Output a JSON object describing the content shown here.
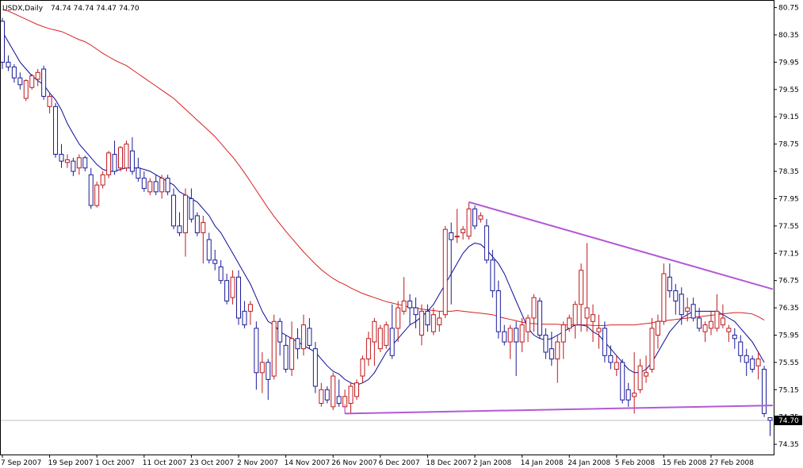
{
  "colors": {
    "background": "#ffffff",
    "frame": "#000000",
    "bull": "#c0181c",
    "bear": "#1a1a99",
    "ma_fast": "#0a0a9a",
    "ma_slow": "#d82020",
    "trendline": "#b25ad6",
    "current_line": "#c0c0c0",
    "current_label_bg": "#000000"
  },
  "chart_data": {
    "type": "candlestick",
    "symbol_label": "USDX,Daily",
    "ohlc_label": "74.74 74.74 74.47 74.70",
    "current_price": "74.70",
    "ylim": [
      74.2,
      80.85
    ],
    "y_ticks": [
      "80.75",
      "80.35",
      "79.95",
      "79.55",
      "79.15",
      "78.75",
      "78.35",
      "77.95",
      "77.55",
      "77.15",
      "76.75",
      "76.35",
      "75.95",
      "75.55",
      "75.15",
      "74.75",
      "74.35"
    ],
    "x_ticks": [
      "7 Sep 2007",
      "19 Sep 2007",
      "1 Oct 2007",
      "11 Oct 2007",
      "23 Oct 2007",
      "2 Nov 2007",
      "14 Nov 2007",
      "26 Nov 2007",
      "6 Dec 2007",
      "18 Dec 2007",
      "2 Jan 2008",
      "14 Jan 2008",
      "24 Jan 2008",
      "5 Feb 2008",
      "15 Feb 2008",
      "27 Feb 2008"
    ],
    "x_tick_bar_index": [
      0,
      8,
      16,
      24,
      32,
      40,
      48,
      56,
      64,
      72,
      80,
      88,
      96,
      104,
      112,
      120
    ],
    "candles": [
      {
        "o": 80.55,
        "h": 80.6,
        "l": 79.85,
        "c": 79.95
      },
      {
        "o": 79.95,
        "h": 80.05,
        "l": 79.82,
        "c": 79.88
      },
      {
        "o": 79.88,
        "h": 79.92,
        "l": 79.65,
        "c": 79.72
      },
      {
        "o": 79.72,
        "h": 79.8,
        "l": 79.55,
        "c": 79.62
      },
      {
        "o": 79.42,
        "h": 79.7,
        "l": 79.38,
        "c": 79.68
      },
      {
        "o": 79.58,
        "h": 79.78,
        "l": 79.55,
        "c": 79.75
      },
      {
        "o": 79.7,
        "h": 79.85,
        "l": 79.6,
        "c": 79.8
      },
      {
        "o": 79.85,
        "h": 79.9,
        "l": 79.4,
        "c": 79.45
      },
      {
        "o": 79.3,
        "h": 79.5,
        "l": 79.2,
        "c": 79.45
      },
      {
        "o": 79.3,
        "h": 79.35,
        "l": 78.55,
        "c": 78.6
      },
      {
        "o": 78.6,
        "h": 78.75,
        "l": 78.4,
        "c": 78.5
      },
      {
        "o": 78.48,
        "h": 78.6,
        "l": 78.4,
        "c": 78.52
      },
      {
        "o": 78.5,
        "h": 78.55,
        "l": 78.28,
        "c": 78.35
      },
      {
        "o": 78.4,
        "h": 78.6,
        "l": 78.3,
        "c": 78.55
      },
      {
        "o": 78.55,
        "h": 78.58,
        "l": 78.35,
        "c": 78.4
      },
      {
        "o": 78.3,
        "h": 78.4,
        "l": 77.8,
        "c": 77.85
      },
      {
        "o": 77.85,
        "h": 78.2,
        "l": 77.82,
        "c": 78.15
      },
      {
        "o": 78.15,
        "h": 78.35,
        "l": 78.1,
        "c": 78.3
      },
      {
        "o": 78.3,
        "h": 78.65,
        "l": 78.25,
        "c": 78.62
      },
      {
        "o": 78.6,
        "h": 78.8,
        "l": 78.3,
        "c": 78.35
      },
      {
        "o": 78.4,
        "h": 78.72,
        "l": 78.35,
        "c": 78.7
      },
      {
        "o": 78.4,
        "h": 78.8,
        "l": 78.35,
        "c": 78.75
      },
      {
        "o": 78.65,
        "h": 78.85,
        "l": 78.3,
        "c": 78.35
      },
      {
        "o": 78.4,
        "h": 78.55,
        "l": 78.2,
        "c": 78.25
      },
      {
        "o": 78.25,
        "h": 78.35,
        "l": 78.05,
        "c": 78.1
      },
      {
        "o": 78.05,
        "h": 78.25,
        "l": 78.0,
        "c": 78.2
      },
      {
        "o": 78.2,
        "h": 78.3,
        "l": 78.0,
        "c": 78.05
      },
      {
        "o": 78.05,
        "h": 78.3,
        "l": 77.95,
        "c": 78.25
      },
      {
        "o": 78.25,
        "h": 78.3,
        "l": 78.0,
        "c": 78.05
      },
      {
        "o": 78.0,
        "h": 78.1,
        "l": 77.5,
        "c": 77.55
      },
      {
        "o": 77.55,
        "h": 77.75,
        "l": 77.4,
        "c": 77.45
      },
      {
        "o": 77.45,
        "h": 78.1,
        "l": 77.1,
        "c": 78.0
      },
      {
        "o": 77.95,
        "h": 78.1,
        "l": 77.6,
        "c": 77.65
      },
      {
        "o": 77.7,
        "h": 77.75,
        "l": 77.4,
        "c": 77.45
      },
      {
        "o": 77.45,
        "h": 77.7,
        "l": 77.0,
        "c": 77.6
      },
      {
        "o": 77.35,
        "h": 77.45,
        "l": 77.0,
        "c": 77.05
      },
      {
        "o": 77.05,
        "h": 77.2,
        "l": 76.9,
        "c": 77.0
      },
      {
        "o": 76.95,
        "h": 77.05,
        "l": 76.7,
        "c": 76.75
      },
      {
        "o": 76.75,
        "h": 76.85,
        "l": 76.4,
        "c": 76.45
      },
      {
        "o": 76.5,
        "h": 76.9,
        "l": 76.4,
        "c": 76.8
      },
      {
        "o": 76.8,
        "h": 76.9,
        "l": 76.1,
        "c": 76.2
      },
      {
        "o": 76.3,
        "h": 76.45,
        "l": 76.05,
        "c": 76.1
      },
      {
        "o": 76.3,
        "h": 76.45,
        "l": 76.1,
        "c": 76.4
      },
      {
        "o": 76.05,
        "h": 76.15,
        "l": 75.15,
        "c": 75.4
      },
      {
        "o": 75.4,
        "h": 75.7,
        "l": 75.1,
        "c": 75.55
      },
      {
        "o": 75.55,
        "h": 75.6,
        "l": 75.0,
        "c": 75.3
      },
      {
        "o": 75.35,
        "h": 76.25,
        "l": 75.3,
        "c": 76.15
      },
      {
        "o": 76.15,
        "h": 76.2,
        "l": 75.65,
        "c": 75.85
      },
      {
        "o": 75.8,
        "h": 75.95,
        "l": 75.4,
        "c": 75.45
      },
      {
        "o": 75.45,
        "h": 76.15,
        "l": 75.35,
        "c": 75.9
      },
      {
        "o": 75.9,
        "h": 76.05,
        "l": 75.6,
        "c": 75.75
      },
      {
        "o": 75.75,
        "h": 76.25,
        "l": 75.65,
        "c": 76.1
      },
      {
        "o": 76.05,
        "h": 76.2,
        "l": 75.75,
        "c": 75.8
      },
      {
        "o": 75.75,
        "h": 75.85,
        "l": 75.1,
        "c": 75.2
      },
      {
        "o": 74.95,
        "h": 75.25,
        "l": 74.9,
        "c": 75.15
      },
      {
        "o": 75.15,
        "h": 75.2,
        "l": 74.95,
        "c": 75.0
      },
      {
        "o": 74.9,
        "h": 75.4,
        "l": 74.85,
        "c": 75.35
      },
      {
        "o": 75.05,
        "h": 75.3,
        "l": 74.9,
        "c": 74.95
      },
      {
        "o": 74.9,
        "h": 75.15,
        "l": 74.8,
        "c": 75.05
      },
      {
        "o": 74.95,
        "h": 75.25,
        "l": 74.8,
        "c": 75.2
      },
      {
        "o": 75.05,
        "h": 75.3,
        "l": 75.0,
        "c": 75.25
      },
      {
        "o": 75.35,
        "h": 75.65,
        "l": 75.25,
        "c": 75.6
      },
      {
        "o": 75.6,
        "h": 76.0,
        "l": 75.5,
        "c": 75.9
      },
      {
        "o": 75.85,
        "h": 76.2,
        "l": 75.5,
        "c": 76.15
      },
      {
        "o": 75.75,
        "h": 76.1,
        "l": 75.7,
        "c": 76.05
      },
      {
        "o": 75.8,
        "h": 76.15,
        "l": 75.75,
        "c": 76.1
      },
      {
        "o": 76.05,
        "h": 76.4,
        "l": 75.6,
        "c": 75.65
      },
      {
        "o": 76.05,
        "h": 76.45,
        "l": 75.85,
        "c": 76.35
      },
      {
        "o": 76.3,
        "h": 76.8,
        "l": 76.25,
        "c": 76.45
      },
      {
        "o": 76.45,
        "h": 76.55,
        "l": 76.1,
        "c": 76.35
      },
      {
        "o": 76.35,
        "h": 76.5,
        "l": 76.05,
        "c": 76.25
      },
      {
        "o": 75.95,
        "h": 76.4,
        "l": 75.8,
        "c": 76.3
      },
      {
        "o": 76.3,
        "h": 76.4,
        "l": 76.0,
        "c": 76.1
      },
      {
        "o": 76.0,
        "h": 76.35,
        "l": 75.95,
        "c": 76.25
      },
      {
        "o": 76.1,
        "h": 76.3,
        "l": 76.0,
        "c": 76.2
      },
      {
        "o": 76.25,
        "h": 77.55,
        "l": 76.2,
        "c": 77.5
      },
      {
        "o": 77.45,
        "h": 77.6,
        "l": 76.4,
        "c": 77.35
      },
      {
        "o": 77.4,
        "h": 77.8,
        "l": 77.3,
        "c": 77.4
      },
      {
        "o": 77.45,
        "h": 77.55,
        "l": 77.35,
        "c": 77.5
      },
      {
        "o": 77.4,
        "h": 77.9,
        "l": 77.35,
        "c": 77.8
      },
      {
        "o": 77.8,
        "h": 77.85,
        "l": 77.5,
        "c": 77.55
      },
      {
        "o": 77.65,
        "h": 77.75,
        "l": 77.6,
        "c": 77.7
      },
      {
        "o": 77.55,
        "h": 77.65,
        "l": 77.0,
        "c": 77.05
      },
      {
        "o": 77.05,
        "h": 77.2,
        "l": 76.5,
        "c": 76.6
      },
      {
        "o": 76.6,
        "h": 76.75,
        "l": 75.9,
        "c": 76.0
      },
      {
        "o": 76.0,
        "h": 76.1,
        "l": 75.8,
        "c": 75.85
      },
      {
        "o": 75.85,
        "h": 76.1,
        "l": 75.6,
        "c": 76.05
      },
      {
        "o": 76.05,
        "h": 76.15,
        "l": 75.35,
        "c": 75.85
      },
      {
        "o": 75.85,
        "h": 76.2,
        "l": 75.7,
        "c": 76.1
      },
      {
        "o": 76.0,
        "h": 76.25,
        "l": 75.85,
        "c": 76.2
      },
      {
        "o": 76.2,
        "h": 76.55,
        "l": 76.0,
        "c": 76.5
      },
      {
        "o": 76.45,
        "h": 76.5,
        "l": 75.9,
        "c": 75.95
      },
      {
        "o": 75.95,
        "h": 76.05,
        "l": 75.6,
        "c": 75.7
      },
      {
        "o": 75.75,
        "h": 76.0,
        "l": 75.5,
        "c": 75.6
      },
      {
        "o": 75.6,
        "h": 75.95,
        "l": 75.25,
        "c": 75.85
      },
      {
        "o": 75.85,
        "h": 76.15,
        "l": 75.6,
        "c": 76.1
      },
      {
        "o": 76.05,
        "h": 76.25,
        "l": 76.0,
        "c": 76.2
      },
      {
        "o": 76.1,
        "h": 76.45,
        "l": 75.9,
        "c": 76.4
      },
      {
        "o": 76.4,
        "h": 77.0,
        "l": 76.0,
        "c": 76.9
      },
      {
        "o": 76.2,
        "h": 77.3,
        "l": 76.0,
        "c": 76.35
      },
      {
        "o": 76.15,
        "h": 76.4,
        "l": 75.85,
        "c": 76.25
      },
      {
        "o": 76.0,
        "h": 76.25,
        "l": 75.75,
        "c": 76.05
      },
      {
        "o": 76.05,
        "h": 76.15,
        "l": 75.55,
        "c": 75.65
      },
      {
        "o": 75.65,
        "h": 75.8,
        "l": 75.45,
        "c": 75.55
      },
      {
        "o": 75.45,
        "h": 75.65,
        "l": 75.35,
        "c": 75.55
      },
      {
        "o": 75.55,
        "h": 75.6,
        "l": 74.95,
        "c": 75.0
      },
      {
        "o": 75.15,
        "h": 75.25,
        "l": 74.9,
        "c": 75.0
      },
      {
        "o": 75.05,
        "h": 75.7,
        "l": 74.8,
        "c": 75.1
      },
      {
        "o": 75.15,
        "h": 75.6,
        "l": 75.1,
        "c": 75.5
      },
      {
        "o": 75.35,
        "h": 75.65,
        "l": 75.25,
        "c": 75.4
      },
      {
        "o": 75.45,
        "h": 76.2,
        "l": 75.4,
        "c": 76.05
      },
      {
        "o": 75.95,
        "h": 76.25,
        "l": 75.75,
        "c": 76.15
      },
      {
        "o": 76.15,
        "h": 77.0,
        "l": 76.1,
        "c": 76.85
      },
      {
        "o": 76.8,
        "h": 77.0,
        "l": 76.5,
        "c": 76.6
      },
      {
        "o": 76.6,
        "h": 76.7,
        "l": 76.25,
        "c": 76.45
      },
      {
        "o": 76.55,
        "h": 76.65,
        "l": 76.1,
        "c": 76.25
      },
      {
        "o": 76.3,
        "h": 76.5,
        "l": 76.15,
        "c": 76.35
      },
      {
        "o": 76.4,
        "h": 76.5,
        "l": 76.15,
        "c": 76.2
      },
      {
        "o": 76.2,
        "h": 76.35,
        "l": 76.0,
        "c": 76.05
      },
      {
        "o": 76.0,
        "h": 76.15,
        "l": 75.85,
        "c": 76.1
      },
      {
        "o": 76.05,
        "h": 76.3,
        "l": 75.95,
        "c": 76.15
      },
      {
        "o": 76.05,
        "h": 76.55,
        "l": 76.0,
        "c": 76.3
      },
      {
        "o": 76.1,
        "h": 76.4,
        "l": 76.05,
        "c": 76.2
      },
      {
        "o": 76.0,
        "h": 76.1,
        "l": 75.85,
        "c": 76.05
      },
      {
        "o": 75.95,
        "h": 76.05,
        "l": 75.75,
        "c": 75.9
      },
      {
        "o": 75.85,
        "h": 75.95,
        "l": 75.55,
        "c": 75.65
      },
      {
        "o": 75.65,
        "h": 75.75,
        "l": 75.35,
        "c": 75.55
      },
      {
        "o": 75.6,
        "h": 75.65,
        "l": 75.4,
        "c": 75.45
      },
      {
        "o": 75.5,
        "h": 75.7,
        "l": 75.3,
        "c": 75.6
      },
      {
        "o": 75.45,
        "h": 75.5,
        "l": 74.75,
        "c": 74.8
      },
      {
        "o": 74.74,
        "h": 74.74,
        "l": 74.47,
        "c": 74.7
      }
    ],
    "ma_fast": [
      80.4,
      80.25,
      80.1,
      79.95,
      79.85,
      79.75,
      79.68,
      79.62,
      79.5,
      79.4,
      79.25,
      79.05,
      78.9,
      78.75,
      78.65,
      78.55,
      78.45,
      78.38,
      78.35,
      78.35,
      78.38,
      78.4,
      78.4,
      78.4,
      78.38,
      78.35,
      78.3,
      78.25,
      78.2,
      78.15,
      78.05,
      78.0,
      77.95,
      77.9,
      77.8,
      77.7,
      77.55,
      77.45,
      77.3,
      77.15,
      77.0,
      76.85,
      76.7,
      76.5,
      76.3,
      76.15,
      76.1,
      76.0,
      75.95,
      75.9,
      75.85,
      75.8,
      75.75,
      75.7,
      75.6,
      75.5,
      75.42,
      75.38,
      75.3,
      75.25,
      75.22,
      75.25,
      75.3,
      75.4,
      75.55,
      75.7,
      75.8,
      75.9,
      76.0,
      76.1,
      76.15,
      76.22,
      76.3,
      76.4,
      76.55,
      76.7,
      76.85,
      77.0,
      77.15,
      77.25,
      77.3,
      77.28,
      77.2,
      77.1,
      77.0,
      76.85,
      76.65,
      76.45,
      76.25,
      76.05,
      75.95,
      75.9,
      75.88,
      75.9,
      75.95,
      76.0,
      76.05,
      76.1,
      76.1,
      76.08,
      76.0,
      75.95,
      75.85,
      75.75,
      75.65,
      75.55,
      75.45,
      75.4,
      75.4,
      75.45,
      75.55,
      75.7,
      75.85,
      76.0,
      76.1,
      76.2,
      76.25,
      76.3,
      76.3,
      76.3,
      76.3,
      76.3,
      76.25,
      76.2,
      76.15,
      76.05,
      75.95,
      75.85,
      75.7,
      75.55
    ],
    "ma_slow": [
      80.72,
      80.7,
      80.66,
      80.62,
      80.58,
      80.54,
      80.5,
      80.47,
      80.44,
      80.42,
      80.4,
      80.36,
      80.32,
      80.28,
      80.25,
      80.2,
      80.14,
      80.08,
      80.03,
      79.98,
      79.94,
      79.9,
      79.84,
      79.78,
      79.72,
      79.66,
      79.6,
      79.54,
      79.48,
      79.42,
      79.34,
      79.26,
      79.18,
      79.1,
      79.02,
      78.94,
      78.86,
      78.76,
      78.66,
      78.56,
      78.45,
      78.33,
      78.2,
      78.07,
      77.94,
      77.81,
      77.69,
      77.58,
      77.47,
      77.37,
      77.27,
      77.17,
      77.08,
      76.99,
      76.91,
      76.84,
      76.78,
      76.73,
      76.69,
      76.64,
      76.6,
      76.56,
      76.53,
      76.5,
      76.47,
      76.44,
      76.42,
      76.4,
      76.38,
      76.36,
      76.35,
      76.33,
      76.32,
      76.31,
      76.3,
      76.3,
      76.3,
      76.31,
      76.3,
      76.29,
      76.28,
      76.27,
      76.26,
      76.25,
      76.22,
      76.2,
      76.18,
      76.16,
      76.14,
      76.12,
      76.12,
      76.11,
      76.11,
      76.11,
      76.11,
      76.1,
      76.1,
      76.1,
      76.1,
      76.1,
      76.09,
      76.09,
      76.09,
      76.1,
      76.1,
      76.1,
      76.1,
      76.1,
      76.11,
      76.12,
      76.13,
      76.15,
      76.16,
      76.17,
      76.18,
      76.19,
      76.2,
      76.21,
      76.22,
      76.23,
      76.24,
      76.25,
      76.26,
      76.27,
      76.28,
      76.28,
      76.27,
      76.26,
      76.22,
      76.17
    ]
  }
}
